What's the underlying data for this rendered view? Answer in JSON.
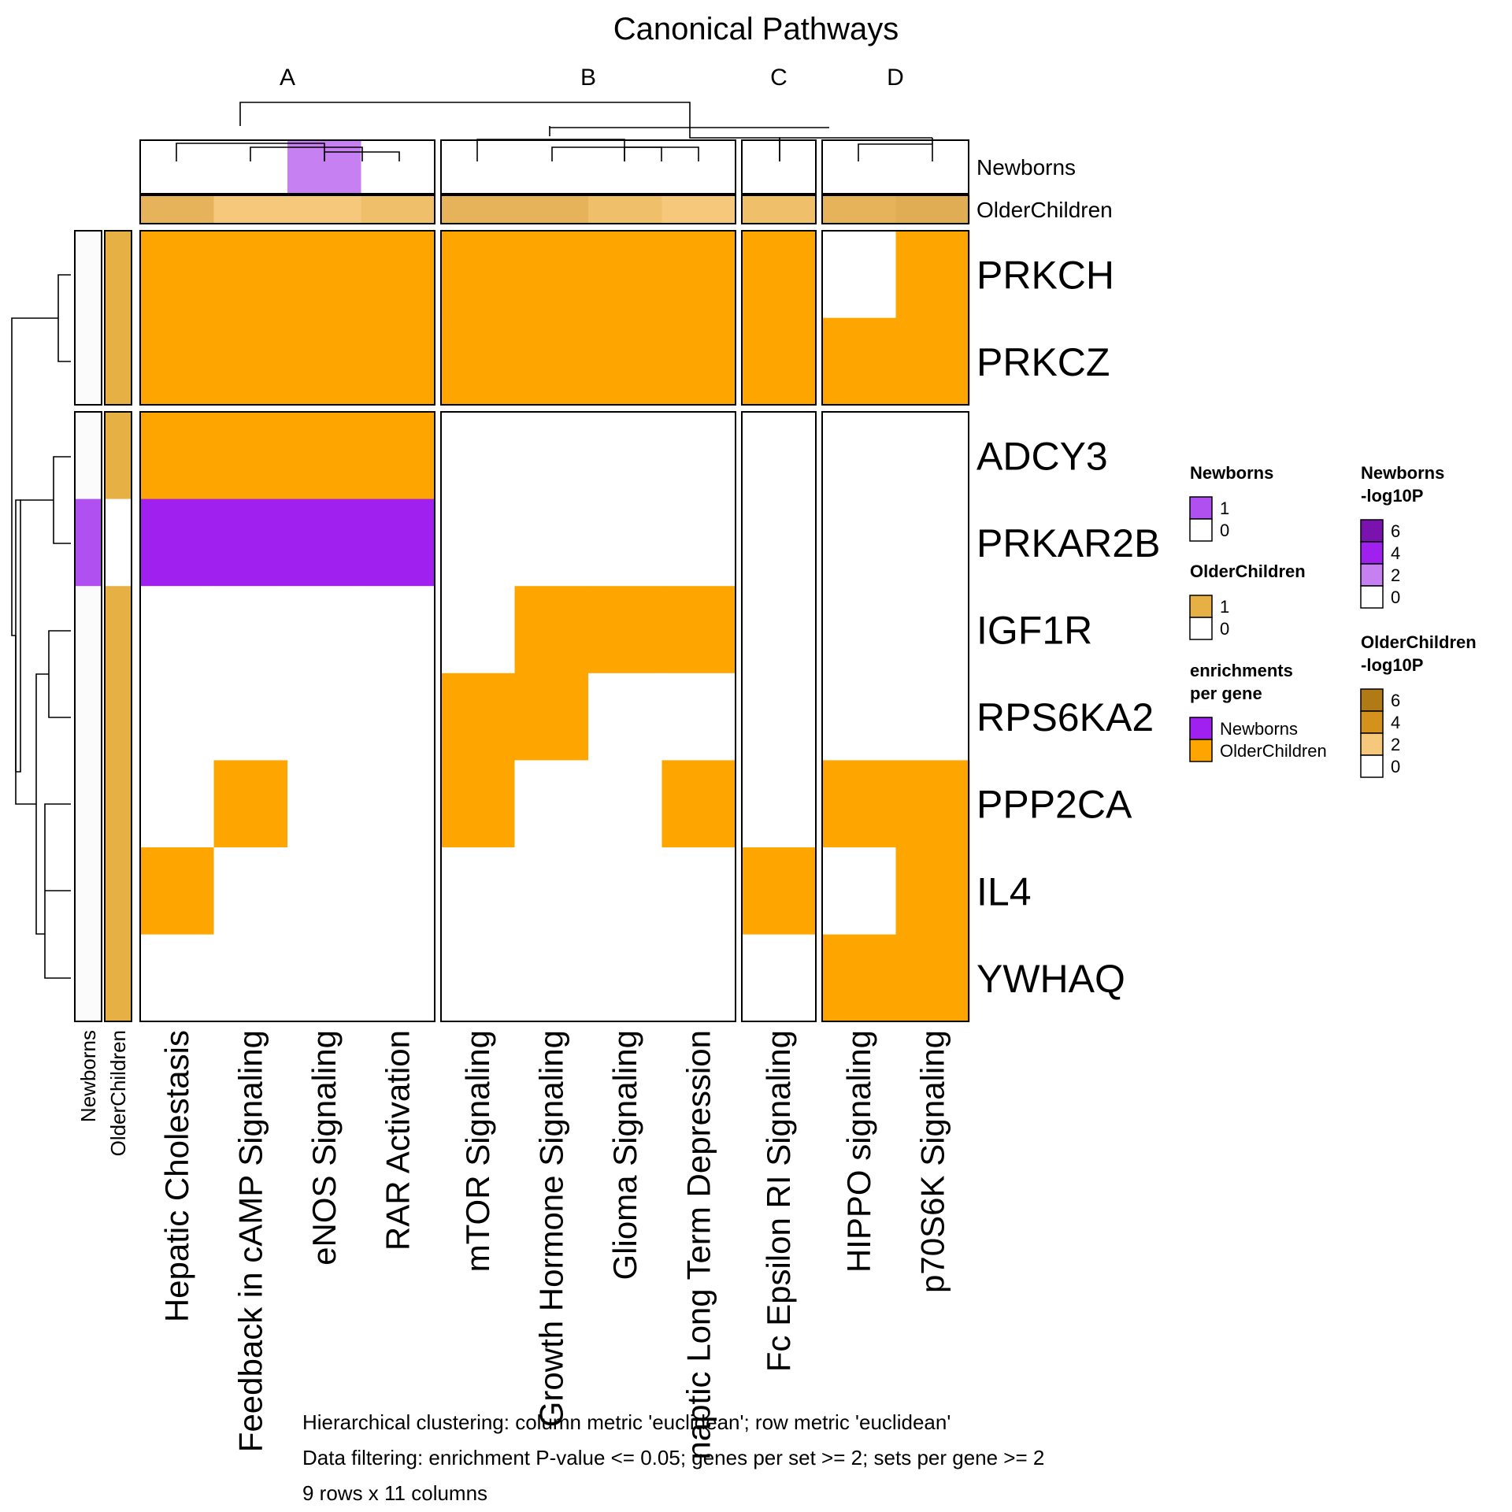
{
  "chart_data": {
    "type": "heatmap",
    "title": "Canonical Pathways",
    "column_groups": [
      {
        "label": "A",
        "columns": [
          "Hepatic Cholestasis",
          "Feedback in cAMP Signaling",
          "eNOS Signaling",
          "RAR Activation"
        ]
      },
      {
        "label": "B",
        "columns": [
          "mTOR Signaling",
          "Growth Hormone Signaling",
          "Glioma Signaling",
          "naptic Long Term Depression"
        ]
      },
      {
        "label": "C",
        "columns": [
          "Fc Epsilon RI Signaling"
        ]
      },
      {
        "label": "D",
        "columns": [
          "HIPPO signaling",
          "p70S6K Signaling"
        ]
      }
    ],
    "row_groups": [
      {
        "rows": [
          "PRKCH",
          "PRKCZ"
        ]
      },
      {
        "rows": [
          "ADCY3",
          "PRKAR2B",
          "IGF1R",
          "RPS6KA2",
          "PPP2CA",
          "IL4",
          "YWHAQ"
        ]
      }
    ],
    "cell_legend": [
      {
        "code": 0,
        "label": "",
        "color": "#ffffff"
      },
      {
        "code": 1,
        "label": "Newborns",
        "color": "#a020f0"
      },
      {
        "code": 2,
        "label": "OlderChildren",
        "color": "#ffa500"
      }
    ],
    "matrix": [
      [
        2,
        2,
        2,
        2,
        2,
        2,
        2,
        2,
        2,
        0,
        2
      ],
      [
        2,
        2,
        2,
        2,
        2,
        2,
        2,
        2,
        2,
        2,
        2
      ],
      [
        2,
        2,
        2,
        2,
        0,
        0,
        0,
        0,
        0,
        0,
        0
      ],
      [
        1,
        1,
        1,
        1,
        0,
        0,
        0,
        0,
        0,
        0,
        0
      ],
      [
        0,
        0,
        0,
        0,
        0,
        2,
        2,
        2,
        0,
        0,
        0
      ],
      [
        0,
        0,
        0,
        0,
        2,
        2,
        0,
        0,
        0,
        0,
        0
      ],
      [
        0,
        2,
        0,
        0,
        2,
        0,
        0,
        2,
        0,
        2,
        2
      ],
      [
        2,
        0,
        0,
        0,
        0,
        0,
        0,
        0,
        2,
        0,
        2
      ],
      [
        0,
        0,
        0,
        0,
        0,
        0,
        0,
        0,
        0,
        2,
        2
      ]
    ],
    "column_annotations": [
      {
        "name": "Newborns",
        "colors": [
          "#ffffff",
          "#ffffff",
          "#c680f2",
          "#ffffff",
          "#ffffff",
          "#ffffff",
          "#ffffff",
          "#ffffff",
          "#ffffff",
          "#ffffff",
          "#ffffff"
        ]
      },
      {
        "name": "OlderChildren",
        "colors": [
          "#e6b35a",
          "#f6c87c",
          "#f6c87c",
          "#f0bf6a",
          "#e6b35a",
          "#e6b35a",
          "#f0bf6a",
          "#f6c87c",
          "#f0bf6a",
          "#e6b35a",
          "#e0ad55"
        ]
      }
    ],
    "row_annotations": [
      {
        "name": "Newborns",
        "values": [
          0,
          0,
          0,
          1,
          0,
          0,
          0,
          0,
          0
        ],
        "colors": {
          "0": "#fbfbfb",
          "1": "#b050f0"
        }
      },
      {
        "name": "OlderChildren",
        "values": [
          1,
          1,
          1,
          0,
          1,
          1,
          1,
          1,
          1
        ],
        "colors": {
          "0": "#ffffff",
          "1": "#e6b045"
        }
      }
    ],
    "legends": [
      {
        "title": [
          "Newborns"
        ],
        "entries": [
          {
            "label": "1",
            "color": "#b050f0"
          },
          {
            "label": "0",
            "color": "#ffffff"
          }
        ]
      },
      {
        "title": [
          "OlderChildren"
        ],
        "entries": [
          {
            "label": "1",
            "color": "#e6b045"
          },
          {
            "label": "0",
            "color": "#ffffff"
          }
        ]
      },
      {
        "title": [
          "enrichments",
          "per gene"
        ],
        "entries": [
          {
            "label": "Newborns",
            "color": "#a020f0"
          },
          {
            "label": "OlderChildren",
            "color": "#ffa500"
          }
        ]
      },
      {
        "title": [
          "Newborns",
          "-log10P"
        ],
        "entries": [
          {
            "label": "6",
            "color": "#7a12b0"
          },
          {
            "label": "4",
            "color": "#a020f0"
          },
          {
            "label": "2",
            "color": "#c680f2"
          },
          {
            "label": "0",
            "color": "#ffffff"
          }
        ]
      },
      {
        "title": [
          "OlderChildren",
          "-log10P"
        ],
        "entries": [
          {
            "label": "6",
            "color": "#b07a15"
          },
          {
            "label": "4",
            "color": "#d4921c"
          },
          {
            "label": "2",
            "color": "#f6c87c"
          },
          {
            "label": "0",
            "color": "#ffffff"
          }
        ]
      }
    ],
    "footnotes": [
      "Hierarchical clustering: column metric 'euclidean'; row metric 'euclidean'",
      "Data filtering: enrichment P-value <= 0.05; genes per set >= 2; sets per gene >= 2",
      "9 rows x 11 columns"
    ]
  }
}
